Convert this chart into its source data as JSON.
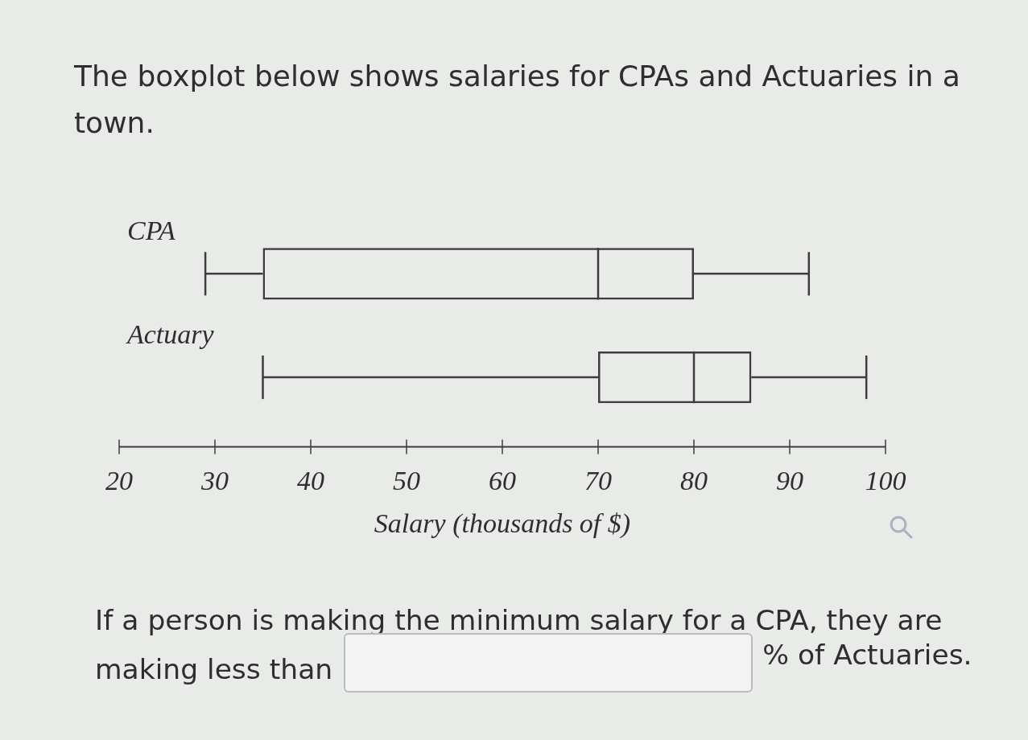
{
  "chart_data": {
    "type": "box",
    "title": "The boxplot below shows salaries for CPAs and Actuaries in a town.",
    "categories": [
      "CPA",
      "Actuary"
    ],
    "orientation": "horizontal",
    "color": "#3d3d3d",
    "boxes": [
      {
        "low": 29,
        "q1": 35,
        "median": 70,
        "q3": 80,
        "high": 92
      },
      {
        "low": 35,
        "q1": 70,
        "median": 80,
        "q3": 86,
        "high": 98
      }
    ],
    "xlabel": "Salary (thousands of $)",
    "xlim": [
      20,
      100
    ],
    "xticks": [
      20,
      30,
      40,
      50,
      60,
      70,
      80,
      90,
      100
    ],
    "grid": false,
    "annotations": [
      "If a person is making the minimum salary for a CPA, they are",
      "making less than",
      "% of Actuaries."
    ]
  }
}
